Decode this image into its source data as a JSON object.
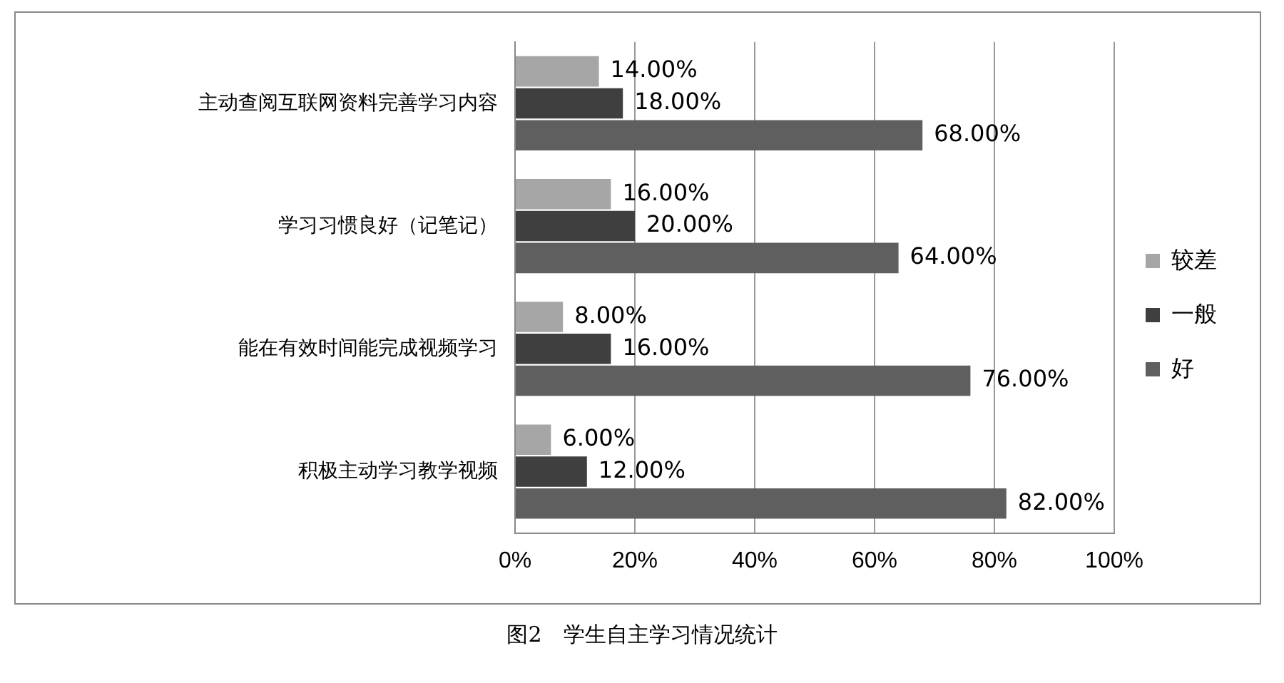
{
  "chart_data": {
    "type": "bar",
    "orientation": "horizontal",
    "title": "图2　学生自主学习情况统计",
    "categories": [
      "主动查阅互联网资料完善学习内容",
      "学习习惯良好（记笔记）",
      "能在有效时间能完成视频学习",
      "积极主动学习教学视频"
    ],
    "series": [
      {
        "name": "较差",
        "color": "#a6a6a6",
        "values": [
          14,
          16,
          8,
          6
        ],
        "value_labels": [
          "14.00%",
          "16.00%",
          "8.00%",
          "6.00%"
        ]
      },
      {
        "name": "一般",
        "color": "#3f3f3f",
        "values": [
          18,
          20,
          16,
          12
        ],
        "value_labels": [
          "18.00%",
          "20.00%",
          "16.00%",
          "12.00%"
        ]
      },
      {
        "name": "好",
        "color": "#5f5f5f",
        "values": [
          68,
          64,
          76,
          82
        ],
        "value_labels": [
          "68.00%",
          "64.00%",
          "76.00%",
          "82.00%"
        ]
      }
    ],
    "xlim": [
      0,
      100
    ],
    "xticks": [
      {
        "value": 0,
        "label": "0%"
      },
      {
        "value": 20,
        "label": "20%"
      },
      {
        "value": 40,
        "label": "40%"
      },
      {
        "value": 60,
        "label": "60%"
      },
      {
        "value": 80,
        "label": "80%"
      },
      {
        "value": 100,
        "label": "100%"
      }
    ],
    "grid": "x",
    "legend": "right"
  }
}
